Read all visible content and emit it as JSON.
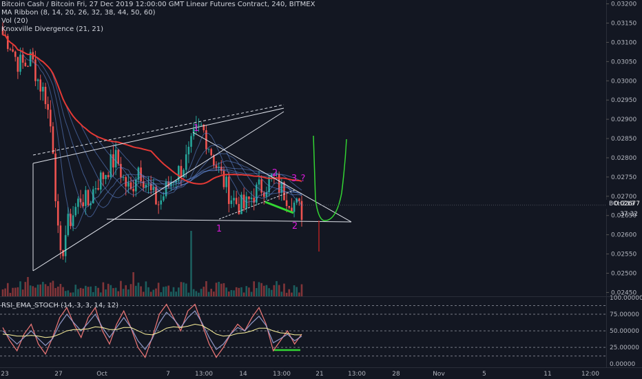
{
  "legend": {
    "title": "Bitcoin Cash / Bitcoin Fri, 27 Dec 2019 12:00:00 GMT Linear Futures Contract, 240, BITMEX",
    "ma_ribbon": "MA Ribbon (8, 14, 20, 26, 32, 38, 44, 50, 60)",
    "vol": "Vol (20)",
    "knoxville": "Knoxville Divergence (21, 21)"
  },
  "rsi_legend": "RSI_EMA_STOCH (14, 3, 3, 14, 12)",
  "price_badge": {
    "symbol": "BCHZ19",
    "price": "0.02677",
    "countdown": "37:32"
  },
  "colors": {
    "background": "#131722",
    "up": "#26a69a",
    "down": "#ef5350",
    "ma_red": "#e53935",
    "ma_green": "#4caf50",
    "annotation_magenta": "#d81bd8",
    "forecast_green": "#33d633",
    "badge_bg": "#131722"
  },
  "annotations": {
    "label_1a": "1",
    "label_1b": "1",
    "label_2a": "2",
    "label_2b": "2",
    "label_3": "3",
    "label_q": "?"
  },
  "chart_data": [
    {
      "type": "candlestick",
      "ylim": [
        0.0244,
        0.0321
      ],
      "y_ticks": [
        "0.03200",
        "0.03150",
        "0.03100",
        "0.03050",
        "0.03000",
        "0.02950",
        "0.02900",
        "0.02850",
        "0.02800",
        "0.02750",
        "0.02700",
        "0.02650",
        "0.02600",
        "0.02550",
        "0.02500",
        "0.02450"
      ],
      "x_ticks": [
        "23",
        "27",
        "Oct",
        "7",
        "13:00",
        "14",
        "13:00",
        "21",
        "13:00",
        "28",
        "Nov",
        "5",
        "11",
        "12:00"
      ],
      "close_path": [
        0.0312,
        0.031,
        0.0305,
        0.0304,
        0.0306,
        0.03,
        0.0296,
        0.0285,
        0.0252,
        0.0262,
        0.0266,
        0.027,
        0.0268,
        0.0273,
        0.0275,
        0.0278,
        0.028,
        0.0274,
        0.0271,
        0.0278,
        0.0274,
        0.027,
        0.0268,
        0.0272,
        0.0275,
        0.0277,
        0.028,
        0.0286,
        0.0288,
        0.0283,
        0.0278,
        0.0274,
        0.027,
        0.0268,
        0.0267,
        0.027,
        0.0272,
        0.0273,
        0.0275,
        0.0272,
        0.027,
        0.0268,
        0.0266
      ],
      "volume_ylim": [
        0,
        1
      ]
    },
    {
      "type": "line",
      "name": "RSI_EMA_STOCH",
      "ylim": [
        -5,
        100
      ],
      "y_ticks": [
        "100.00000",
        "75.00000",
        "50.00000",
        "25.00000",
        "0.00000"
      ],
      "series": [
        {
          "values": [
            55,
            35,
            20,
            45,
            60,
            30,
            15,
            40,
            70,
            85,
            60,
            40,
            70,
            85,
            50,
            30,
            60,
            80,
            55,
            25,
            10,
            40,
            75,
            90,
            70,
            50,
            80,
            90,
            60,
            30,
            10,
            25,
            45,
            60,
            50,
            70,
            85,
            60,
            20,
            35,
            50,
            30,
            45
          ]
        },
        {
          "values": [
            50,
            40,
            30,
            40,
            50,
            38,
            28,
            38,
            60,
            75,
            62,
            50,
            62,
            75,
            55,
            40,
            55,
            70,
            55,
            35,
            22,
            38,
            62,
            78,
            68,
            55,
            70,
            80,
            62,
            40,
            22,
            30,
            45,
            55,
            50,
            62,
            72,
            58,
            32,
            38,
            45,
            35,
            42
          ]
        },
        {
          "values": [
            45,
            44,
            42,
            42,
            43,
            42,
            40,
            41,
            45,
            50,
            52,
            52,
            53,
            56,
            55,
            52,
            52,
            55,
            55,
            50,
            45,
            44,
            48,
            54,
            56,
            55,
            57,
            60,
            58,
            52,
            45,
            42,
            43,
            46,
            47,
            50,
            54,
            54,
            50,
            47,
            46,
            44,
            44
          ]
        }
      ]
    }
  ]
}
